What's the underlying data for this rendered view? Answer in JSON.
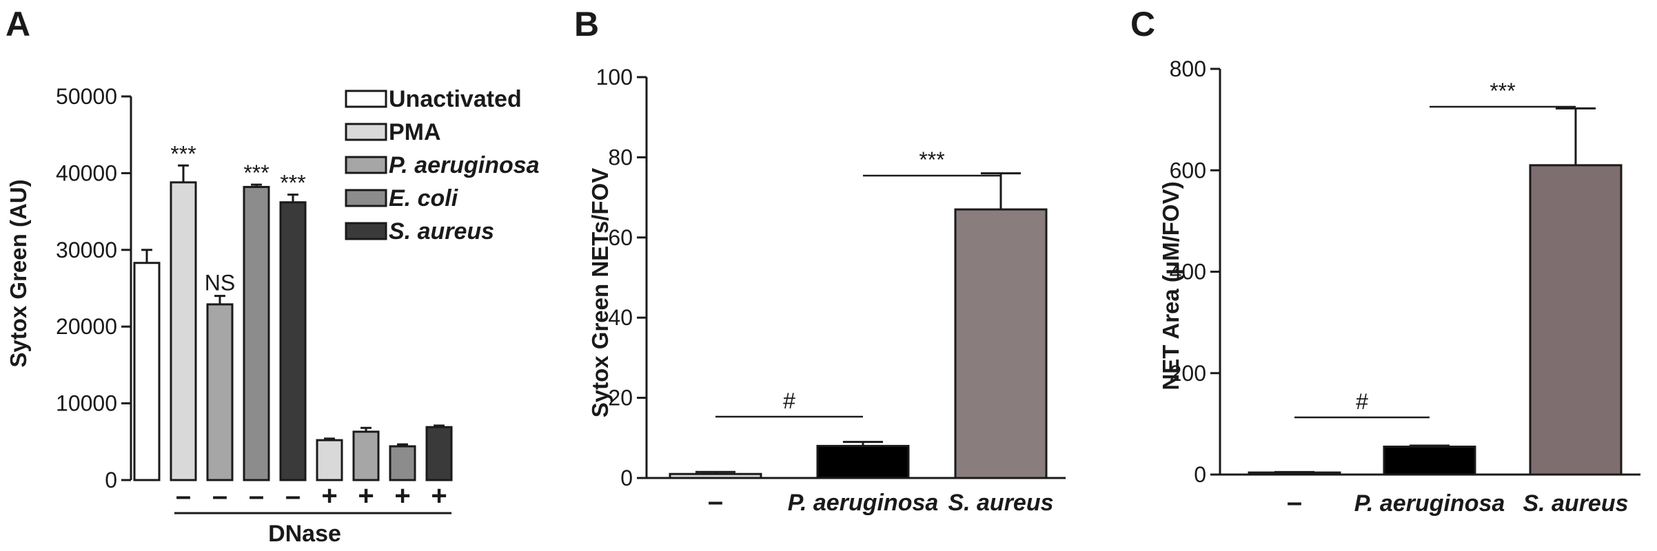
{
  "panels": [
    {
      "letter": "A",
      "chart_data": {
        "type": "bar",
        "ylabel": "Sytox Green (AU)",
        "xlabel": "DNase",
        "ylim": [
          0,
          50000
        ],
        "yticks": [
          0,
          10000,
          20000,
          30000,
          40000,
          50000
        ],
        "grid": false,
        "legend": {
          "placement": "top-right",
          "entries": [
            {
              "label": "Unactivated",
              "color": "#ffffff",
              "italic": false
            },
            {
              "label": "PMA",
              "color": "#d9d9d9",
              "italic": false
            },
            {
              "label": "P. aeruginosa",
              "color": "#a6a6a6",
              "italic": true
            },
            {
              "label": "E. coli",
              "color": "#8c8c8c",
              "italic": true
            },
            {
              "label": "S. aureus",
              "color": "#3a3a3a",
              "italic": true
            }
          ]
        },
        "bars": [
          {
            "group": "Unactivated",
            "dnase": "",
            "value": 28300,
            "error": 1700,
            "annotation": ""
          },
          {
            "group": "PMA",
            "dnase": "–",
            "value": 38800,
            "error": 2200,
            "annotation": "***"
          },
          {
            "group": "P. aeruginosa",
            "dnase": "–",
            "value": 22900,
            "error": 1100,
            "annotation": "NS"
          },
          {
            "group": "E. coli",
            "dnase": "–",
            "value": 38200,
            "error": 300,
            "annotation": "***"
          },
          {
            "group": "S. aureus",
            "dnase": "–",
            "value": 36200,
            "error": 1000,
            "annotation": "***"
          },
          {
            "group": "PMA",
            "dnase": "+",
            "value": 5200,
            "error": 200,
            "annotation": ""
          },
          {
            "group": "P. aeruginosa",
            "dnase": "+",
            "value": 6300,
            "error": 500,
            "annotation": ""
          },
          {
            "group": "E. coli",
            "dnase": "+",
            "value": 4400,
            "error": 250,
            "annotation": ""
          },
          {
            "group": "S. aureus",
            "dnase": "+",
            "value": 6900,
            "error": 200,
            "annotation": ""
          }
        ]
      }
    },
    {
      "letter": "B",
      "chart_data": {
        "type": "bar",
        "ylabel": "Sytox Green NETs/FOV",
        "xlabel": "",
        "ylim": [
          0,
          100
        ],
        "yticks": [
          0,
          20,
          40,
          60,
          80,
          100
        ],
        "grid": false,
        "categories": [
          "–",
          "P. aeruginosa",
          "S. aureus"
        ],
        "values": [
          1,
          8,
          67
        ],
        "errors": [
          0.5,
          1,
          9
        ],
        "colors": [
          "#d9d9d9",
          "#000000",
          "#8a7d7d"
        ],
        "significance": [
          {
            "from": 0,
            "to": 1,
            "label": "#"
          },
          {
            "from": 1,
            "to": 2,
            "label": "***"
          }
        ]
      }
    },
    {
      "letter": "C",
      "chart_data": {
        "type": "bar",
        "ylabel": "NET Area (μM/FOV)",
        "xlabel": "",
        "ylim": [
          0,
          800
        ],
        "yticks": [
          0,
          200,
          400,
          600,
          800
        ],
        "grid": false,
        "categories": [
          "–",
          "P. aeruginosa",
          "S. aureus"
        ],
        "values": [
          4,
          55,
          610
        ],
        "errors": [
          1,
          2,
          112
        ],
        "colors": [
          "#d9d9d9",
          "#000000",
          "#7f6e6f"
        ],
        "significance": [
          {
            "from": 0,
            "to": 1,
            "label": "#"
          },
          {
            "from": 1,
            "to": 2,
            "label": "***"
          }
        ]
      }
    }
  ]
}
